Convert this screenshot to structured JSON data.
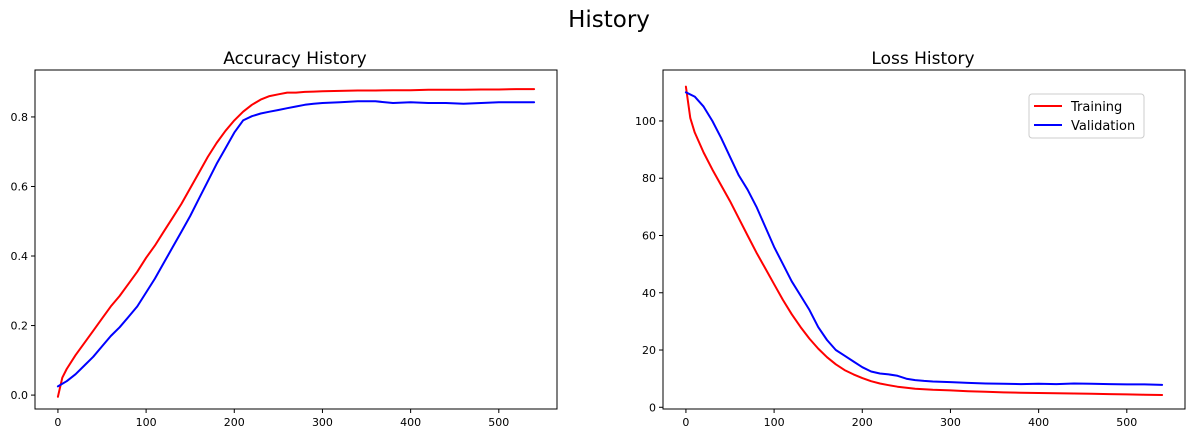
{
  "figure": {
    "suptitle": "History"
  },
  "colors": {
    "training": "#ff0000",
    "validation": "#0000ff"
  },
  "chart_data": [
    {
      "type": "line",
      "title": "Accuracy History",
      "xlabel": "",
      "ylabel": "",
      "xlim": [
        -26,
        566
      ],
      "ylim": [
        -0.04,
        0.935
      ],
      "xticks": [
        0,
        100,
        200,
        300,
        400,
        500
      ],
      "yticks": [
        0.0,
        0.2,
        0.4,
        0.6,
        0.8
      ],
      "ytick_format": 1,
      "grid": false,
      "legend": null,
      "series": [
        {
          "key": "training",
          "x": [
            0,
            5,
            10,
            20,
            30,
            40,
            50,
            60,
            70,
            80,
            90,
            100,
            110,
            120,
            130,
            140,
            150,
            160,
            170,
            180,
            190,
            200,
            210,
            220,
            230,
            240,
            250,
            260,
            270,
            280,
            290,
            300,
            320,
            340,
            360,
            380,
            400,
            420,
            440,
            460,
            480,
            500,
            520,
            540
          ],
          "y": [
            -0.005,
            0.05,
            0.075,
            0.115,
            0.15,
            0.185,
            0.22,
            0.255,
            0.285,
            0.32,
            0.355,
            0.395,
            0.43,
            0.47,
            0.51,
            0.55,
            0.595,
            0.64,
            0.685,
            0.725,
            0.76,
            0.79,
            0.815,
            0.835,
            0.85,
            0.86,
            0.865,
            0.87,
            0.87,
            0.872,
            0.873,
            0.874,
            0.875,
            0.876,
            0.876,
            0.877,
            0.877,
            0.878,
            0.878,
            0.878,
            0.879,
            0.879,
            0.88,
            0.88
          ]
        },
        {
          "key": "validation",
          "x": [
            0,
            10,
            20,
            30,
            40,
            50,
            60,
            70,
            80,
            90,
            100,
            110,
            120,
            130,
            140,
            150,
            160,
            170,
            180,
            190,
            200,
            210,
            220,
            230,
            240,
            250,
            260,
            270,
            280,
            290,
            300,
            320,
            340,
            360,
            380,
            400,
            420,
            440,
            460,
            480,
            500,
            520,
            540
          ],
          "y": [
            0.025,
            0.04,
            0.06,
            0.085,
            0.11,
            0.14,
            0.17,
            0.195,
            0.225,
            0.255,
            0.295,
            0.335,
            0.38,
            0.425,
            0.47,
            0.515,
            0.565,
            0.615,
            0.665,
            0.71,
            0.755,
            0.79,
            0.802,
            0.81,
            0.815,
            0.82,
            0.825,
            0.83,
            0.835,
            0.838,
            0.84,
            0.842,
            0.845,
            0.845,
            0.84,
            0.842,
            0.84,
            0.84,
            0.838,
            0.84,
            0.842,
            0.842,
            0.842
          ]
        }
      ]
    },
    {
      "type": "line",
      "title": "Loss History",
      "xlabel": "",
      "ylabel": "",
      "xlim": [
        -26,
        566
      ],
      "ylim": [
        -0.6,
        117.8
      ],
      "xticks": [
        0,
        100,
        200,
        300,
        400,
        500
      ],
      "yticks": [
        0,
        20,
        40,
        60,
        80,
        100
      ],
      "ytick_format": 0,
      "grid": false,
      "legend": {
        "position": "upper right",
        "entries": [
          "Training",
          "Validation"
        ]
      },
      "series": [
        {
          "key": "training",
          "name": "Training",
          "x": [
            0,
            5,
            10,
            20,
            30,
            40,
            50,
            60,
            70,
            80,
            90,
            100,
            110,
            120,
            130,
            140,
            150,
            160,
            170,
            180,
            190,
            200,
            210,
            220,
            230,
            240,
            250,
            260,
            270,
            280,
            300,
            320,
            340,
            360,
            380,
            400,
            420,
            440,
            460,
            480,
            500,
            520,
            540
          ],
          "y": [
            112,
            101,
            96,
            89,
            83,
            77.5,
            72,
            66,
            60,
            54,
            48.5,
            43,
            37.5,
            32.5,
            28,
            24,
            20.5,
            17.5,
            15,
            13,
            11.5,
            10.2,
            9.1,
            8.3,
            7.7,
            7.2,
            6.8,
            6.5,
            6.3,
            6.1,
            5.9,
            5.6,
            5.4,
            5.2,
            5.1,
            5.0,
            4.9,
            4.8,
            4.7,
            4.6,
            4.5,
            4.4,
            4.3
          ]
        },
        {
          "key": "validation",
          "name": "Validation",
          "x": [
            0,
            10,
            20,
            30,
            40,
            50,
            60,
            70,
            80,
            90,
            100,
            110,
            120,
            130,
            140,
            150,
            160,
            170,
            180,
            190,
            200,
            210,
            220,
            230,
            240,
            250,
            260,
            270,
            280,
            300,
            320,
            340,
            360,
            380,
            400,
            420,
            440,
            460,
            480,
            500,
            520,
            540
          ],
          "y": [
            110,
            108.5,
            105,
            100,
            94,
            87.5,
            81,
            76,
            70,
            63,
            56,
            50,
            44,
            39,
            34,
            28,
            23.5,
            20,
            18,
            16,
            14,
            12.5,
            11.8,
            11.5,
            11,
            10,
            9.5,
            9.2,
            9.0,
            8.8,
            8.5,
            8.3,
            8.2,
            8.1,
            8.2,
            8.1,
            8.3,
            8.2,
            8.1,
            8.0,
            8.0,
            7.8
          ]
        }
      ]
    }
  ]
}
